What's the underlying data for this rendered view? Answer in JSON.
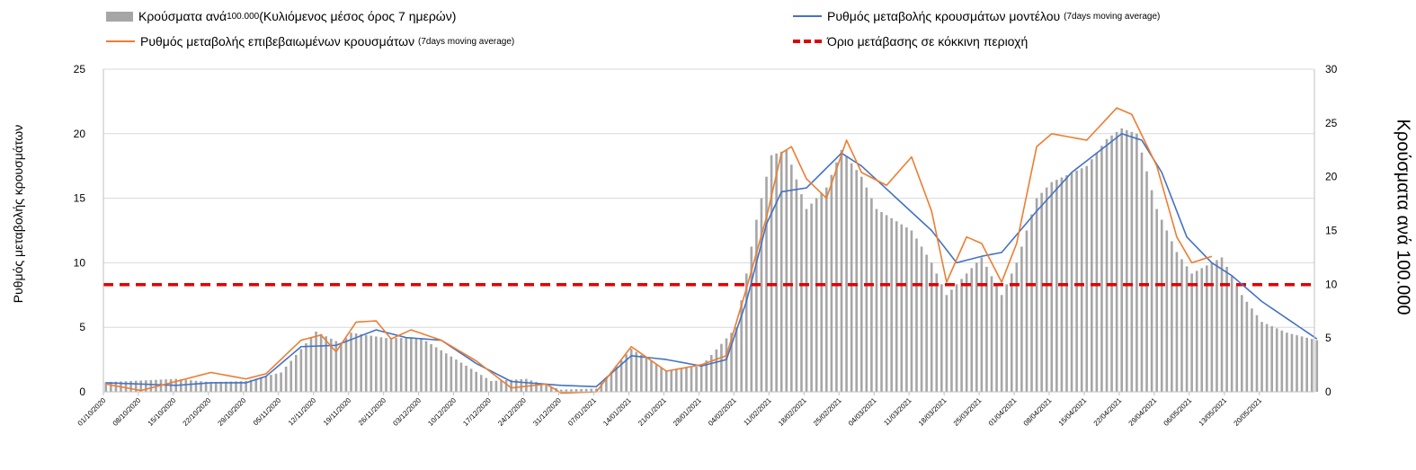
{
  "legend": {
    "bars": {
      "main": "Κρούσματα ανά ",
      "small1": "100.000",
      "rest": " (Κυλιόμενος μέσος όρος 7 ημερών)"
    },
    "model": {
      "main": "Ρυθμός μεταβολής κρουσμάτων μοντέλου ",
      "small": "(7days moving average)"
    },
    "confirmed": {
      "main": "Ρυθμός μεταβολής επιβεβαιωμένων κρουσμάτων ",
      "small": "(7days moving average)"
    },
    "threshold": {
      "main": "Όριο μετάβασης σε κόκκινη περιοχή"
    }
  },
  "colors": {
    "bars": "#a6a6a6",
    "model_line": "#4472c4",
    "confirmed_line": "#ed7d31",
    "threshold": "#e00000",
    "grid": "#d9d9d9"
  },
  "chart_data": {
    "type": "bar+line",
    "ylabel_left": "Ρυθμός μεταβολής κρουσμάτων",
    "ylabel_right": "Κρούσματα ανά 100.000",
    "ylim_left": [
      0,
      25
    ],
    "ylim_right": [
      0,
      30
    ],
    "yticks_left": [
      0,
      5,
      10,
      15,
      20,
      25
    ],
    "yticks_right": [
      0,
      5,
      10,
      15,
      20,
      25,
      30
    ],
    "grid": true,
    "x_start": "2020-10-01",
    "x_end": "2021-05-31",
    "xtick_labels": [
      "01/10/2020",
      "08/10/2020",
      "15/10/2020",
      "22/10/2020",
      "29/10/2020",
      "05/11/2020",
      "12/11/2020",
      "19/11/2020",
      "26/11/2020",
      "03/12/2020",
      "10/12/2020",
      "17/12/2020",
      "24/12/2020",
      "31/12/2020",
      "07/01/2021",
      "14/01/2021",
      "21/01/2021",
      "28/01/2021",
      "04/02/2021",
      "11/02/2021",
      "18/02/2021",
      "25/02/2021",
      "04/03/2021",
      "11/03/2021",
      "18/03/2021",
      "25/03/2021",
      "01/04/2021",
      "08/04/2021",
      "15/04/2021",
      "22/04/2021",
      "29/04/2021",
      "06/05/2021",
      "13/05/2021",
      "20/05/2021"
    ],
    "threshold_left": 8.3,
    "bars_right_axis": {
      "name": "Κρούσματα ανά 100.000 (Κυλιόμενος μέσος όρος 7 ημερών)",
      "anchors": [
        [
          "2020-10-01",
          0.9
        ],
        [
          "2020-10-15",
          1.2
        ],
        [
          "2020-10-22",
          0.9
        ],
        [
          "2020-10-29",
          1.0
        ],
        [
          "2020-11-05",
          1.8
        ],
        [
          "2020-11-12",
          5.6
        ],
        [
          "2020-11-17",
          4.5
        ],
        [
          "2020-11-19",
          5.5
        ],
        [
          "2020-11-26",
          5.0
        ],
        [
          "2020-12-03",
          5.0
        ],
        [
          "2020-12-10",
          3.0
        ],
        [
          "2020-12-17",
          1.0
        ],
        [
          "2020-12-24",
          1.2
        ],
        [
          "2020-12-31",
          0.2
        ],
        [
          "2021-01-07",
          0.3
        ],
        [
          "2021-01-14",
          4.0
        ],
        [
          "2021-01-21",
          2.0
        ],
        [
          "2021-01-28",
          2.4
        ],
        [
          "2021-02-04",
          6.0
        ],
        [
          "2021-02-08",
          16.0
        ],
        [
          "2021-02-11",
          22.0
        ],
        [
          "2021-02-14",
          22.5
        ],
        [
          "2021-02-18",
          17.0
        ],
        [
          "2021-02-22",
          19.0
        ],
        [
          "2021-02-25",
          22.5
        ],
        [
          "2021-03-01",
          20.0
        ],
        [
          "2021-03-04",
          17.0
        ],
        [
          "2021-03-11",
          15.0
        ],
        [
          "2021-03-15",
          12.0
        ],
        [
          "2021-03-18",
          9.0
        ],
        [
          "2021-03-25",
          12.5
        ],
        [
          "2021-03-29",
          9.0
        ],
        [
          "2021-04-01",
          12.0
        ],
        [
          "2021-04-05",
          18.0
        ],
        [
          "2021-04-08",
          19.5
        ],
        [
          "2021-04-15",
          21.0
        ],
        [
          "2021-04-19",
          23.5
        ],
        [
          "2021-04-22",
          24.5
        ],
        [
          "2021-04-25",
          24.0
        ],
        [
          "2021-04-29",
          17.0
        ],
        [
          "2021-05-03",
          13.0
        ],
        [
          "2021-05-06",
          11.0
        ],
        [
          "2021-05-10",
          12.0
        ],
        [
          "2021-05-12",
          12.5
        ],
        [
          "2021-05-16",
          9.0
        ],
        [
          "2021-05-20",
          6.5
        ],
        [
          "2021-05-25",
          5.5
        ],
        [
          "2021-05-31",
          4.8
        ]
      ]
    },
    "series": [
      {
        "name": "Ρυθμός μεταβολής κρουσμάτων μοντέλου (7days moving average)",
        "axis": "left",
        "anchors": [
          [
            "2020-10-01",
            0.7
          ],
          [
            "2020-10-15",
            0.5
          ],
          [
            "2020-10-22",
            0.7
          ],
          [
            "2020-10-29",
            0.7
          ],
          [
            "2020-11-02",
            1.2
          ],
          [
            "2020-11-09",
            3.5
          ],
          [
            "2020-11-16",
            3.6
          ],
          [
            "2020-11-24",
            4.8
          ],
          [
            "2020-11-30",
            4.2
          ],
          [
            "2020-12-07",
            4.0
          ],
          [
            "2020-12-14",
            2.2
          ],
          [
            "2020-12-21",
            0.8
          ],
          [
            "2020-12-31",
            0.5
          ],
          [
            "2021-01-07",
            0.4
          ],
          [
            "2021-01-14",
            2.8
          ],
          [
            "2021-01-21",
            2.5
          ],
          [
            "2021-01-28",
            2.0
          ],
          [
            "2021-02-02",
            2.5
          ],
          [
            "2021-02-06",
            7.0
          ],
          [
            "2021-02-10",
            13.0
          ],
          [
            "2021-02-13",
            15.5
          ],
          [
            "2021-02-18",
            15.8
          ],
          [
            "2021-02-25",
            18.5
          ],
          [
            "2021-03-01",
            17.5
          ],
          [
            "2021-03-08",
            15.0
          ],
          [
            "2021-03-15",
            12.5
          ],
          [
            "2021-03-20",
            10.0
          ],
          [
            "2021-03-25",
            10.5
          ],
          [
            "2021-03-29",
            10.8
          ],
          [
            "2021-04-05",
            14.0
          ],
          [
            "2021-04-12",
            17.0
          ],
          [
            "2021-04-22",
            20.0
          ],
          [
            "2021-04-26",
            19.5
          ],
          [
            "2021-04-30",
            17.0
          ],
          [
            "2021-05-05",
            12.0
          ],
          [
            "2021-05-10",
            10.0
          ],
          [
            "2021-05-14",
            9.0
          ],
          [
            "2021-05-20",
            7.0
          ],
          [
            "2021-05-31",
            4.1
          ]
        ]
      },
      {
        "name": "Ρυθμός μεταβολής επιβεβαιωμένων κρουσμάτων (7days moving average)",
        "axis": "left",
        "anchors": [
          [
            "2020-10-01",
            0.6
          ],
          [
            "2020-10-08",
            0.1
          ],
          [
            "2020-10-15",
            0.8
          ],
          [
            "2020-10-22",
            1.5
          ],
          [
            "2020-10-29",
            1.0
          ],
          [
            "2020-11-02",
            1.4
          ],
          [
            "2020-11-09",
            4.0
          ],
          [
            "2020-11-13",
            4.4
          ],
          [
            "2020-11-16",
            3.1
          ],
          [
            "2020-11-20",
            5.4
          ],
          [
            "2020-11-24",
            5.5
          ],
          [
            "2020-11-27",
            4.1
          ],
          [
            "2020-12-01",
            4.8
          ],
          [
            "2020-12-07",
            4.0
          ],
          [
            "2020-12-14",
            2.4
          ],
          [
            "2020-12-21",
            0.3
          ],
          [
            "2020-12-28",
            0.6
          ],
          [
            "2020-12-31",
            -0.1
          ],
          [
            "2021-01-07",
            0.0
          ],
          [
            "2021-01-14",
            3.5
          ],
          [
            "2021-01-21",
            1.6
          ],
          [
            "2021-01-28",
            2.1
          ],
          [
            "2021-02-02",
            2.8
          ],
          [
            "2021-02-06",
            8.0
          ],
          [
            "2021-02-10",
            13.5
          ],
          [
            "2021-02-13",
            18.5
          ],
          [
            "2021-02-15",
            19.0
          ],
          [
            "2021-02-18",
            16.5
          ],
          [
            "2021-02-22",
            15.0
          ],
          [
            "2021-02-26",
            19.5
          ],
          [
            "2021-03-01",
            17.0
          ],
          [
            "2021-03-06",
            16.0
          ],
          [
            "2021-03-11",
            18.2
          ],
          [
            "2021-03-15",
            14.0
          ],
          [
            "2021-03-18",
            8.5
          ],
          [
            "2021-03-22",
            12.0
          ],
          [
            "2021-03-25",
            11.5
          ],
          [
            "2021-03-29",
            8.5
          ],
          [
            "2021-04-01",
            11.5
          ],
          [
            "2021-04-05",
            19.0
          ],
          [
            "2021-04-08",
            20.0
          ],
          [
            "2021-04-15",
            19.5
          ],
          [
            "2021-04-21",
            22.0
          ],
          [
            "2021-04-24",
            21.5
          ],
          [
            "2021-04-29",
            17.5
          ],
          [
            "2021-05-03",
            12.0
          ],
          [
            "2021-05-06",
            10.0
          ],
          [
            "2021-05-10",
            10.5
          ]
        ]
      }
    ]
  }
}
